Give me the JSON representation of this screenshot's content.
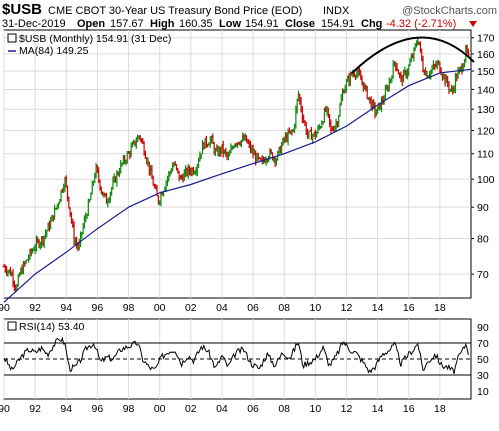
{
  "header": {
    "symbol": "$USB",
    "description": "CME CBOT 30-Year US Treasury Bond Price (EOD)",
    "exchange": "INDX",
    "watermark": "@StockCharts.com",
    "date": "31-Dec-2019",
    "ohlc": {
      "open_label": "Open",
      "open": "157.67",
      "high_label": "High",
      "high": "160.35",
      "low_label": "Low",
      "low": "154.91",
      "close_label": "Close",
      "close": "154.91",
      "chg_label": "Chg",
      "chg": "-4.32 (-2.71%)"
    }
  },
  "colors": {
    "up_bar": "#0d8a0d",
    "down_bar": "#cc0000",
    "ma_line": "#1a1a8c",
    "rsi_line": "#000000",
    "grid": "#dcdcdc",
    "arc": "#000000"
  },
  "chart_data": [
    {
      "type": "ohlc",
      "legend": [
        {
          "label": "$USB (Monthly) 154.91 (31 Dec)",
          "color": "#000000"
        },
        {
          "label": "MA(84) 149.25",
          "color": "#1a1a8c"
        }
      ],
      "x_ticks": [
        "90",
        "92",
        "94",
        "96",
        "98",
        "00",
        "02",
        "04",
        "06",
        "08",
        "10",
        "12",
        "14",
        "16",
        "18"
      ],
      "x_range": [
        1990.0,
        2020.0
      ],
      "y_ticks": [
        70,
        80,
        90,
        100,
        110,
        120,
        130,
        140,
        150,
        160,
        170
      ],
      "y_range": [
        64,
        175
      ],
      "scale": "log",
      "grid": true,
      "price": [
        [
          1990.0,
          72
        ],
        [
          1990.5,
          70
        ],
        [
          1990.8,
          66
        ],
        [
          1991.0,
          70
        ],
        [
          1991.5,
          74
        ],
        [
          1992.0,
          78
        ],
        [
          1992.5,
          80
        ],
        [
          1993.0,
          85
        ],
        [
          1993.5,
          92
        ],
        [
          1993.9,
          100
        ],
        [
          1994.2,
          90
        ],
        [
          1994.5,
          80
        ],
        [
          1994.8,
          77
        ],
        [
          1995.0,
          82
        ],
        [
          1995.5,
          92
        ],
        [
          1995.9,
          104
        ],
        [
          1996.3,
          95
        ],
        [
          1996.6,
          92
        ],
        [
          1997.0,
          98
        ],
        [
          1997.5,
          105
        ],
        [
          1998.0,
          110
        ],
        [
          1998.7,
          118
        ],
        [
          1999.0,
          112
        ],
        [
          1999.5,
          100
        ],
        [
          1999.9,
          92
        ],
        [
          2000.2,
          96
        ],
        [
          2000.6,
          102
        ],
        [
          2000.9,
          106
        ],
        [
          2001.3,
          100
        ],
        [
          2001.8,
          103
        ],
        [
          2002.3,
          104
        ],
        [
          2002.8,
          114
        ],
        [
          2003.3,
          116
        ],
        [
          2003.6,
          110
        ],
        [
          2004.0,
          112
        ],
        [
          2004.4,
          108
        ],
        [
          2004.8,
          115
        ],
        [
          2005.5,
          116
        ],
        [
          2006.0,
          110
        ],
        [
          2006.5,
          106
        ],
        [
          2007.0,
          110
        ],
        [
          2007.5,
          108
        ],
        [
          2008.0,
          116
        ],
        [
          2008.6,
          120
        ],
        [
          2008.9,
          138
        ],
        [
          2009.2,
          126
        ],
        [
          2009.5,
          118
        ],
        [
          2010.0,
          118
        ],
        [
          2010.3,
          122
        ],
        [
          2010.7,
          130
        ],
        [
          2011.0,
          120
        ],
        [
          2011.4,
          124
        ],
        [
          2011.8,
          140
        ],
        [
          2012.3,
          148
        ],
        [
          2012.6,
          150
        ],
        [
          2013.0,
          144
        ],
        [
          2013.5,
          134
        ],
        [
          2013.9,
          128
        ],
        [
          2014.3,
          134
        ],
        [
          2014.6,
          140
        ],
        [
          2014.9,
          148
        ],
        [
          2015.1,
          156
        ],
        [
          2015.5,
          145
        ],
        [
          2015.9,
          150
        ],
        [
          2016.3,
          160
        ],
        [
          2016.6,
          170
        ],
        [
          2016.9,
          152
        ],
        [
          2017.2,
          148
        ],
        [
          2017.6,
          152
        ],
        [
          2017.9,
          154
        ],
        [
          2018.3,
          146
        ],
        [
          2018.8,
          138
        ],
        [
          2019.0,
          146
        ],
        [
          2019.4,
          152
        ],
        [
          2019.7,
          162
        ],
        [
          2019.9,
          155
        ]
      ],
      "ma84": [
        [
          1990.0,
          63
        ],
        [
          1992.0,
          70
        ],
        [
          1994.0,
          76
        ],
        [
          1996.0,
          83
        ],
        [
          1998.0,
          90
        ],
        [
          2000.0,
          95
        ],
        [
          2002.0,
          98
        ],
        [
          2004.0,
          102
        ],
        [
          2006.0,
          106
        ],
        [
          2008.0,
          110
        ],
        [
          2010.0,
          115
        ],
        [
          2012.0,
          122
        ],
        [
          2014.0,
          132
        ],
        [
          2016.0,
          142
        ],
        [
          2018.0,
          149
        ],
        [
          2020.0,
          151
        ]
      ]
    },
    {
      "type": "line",
      "legend": [
        {
          "label": "RSI(14) 53.40",
          "color": "#000000"
        }
      ],
      "y_ticks": [
        10,
        30,
        50,
        70,
        90
      ],
      "y_range": [
        0,
        100
      ],
      "reference_lines": [
        30,
        50,
        70
      ],
      "rsi": [
        [
          1990.0,
          52
        ],
        [
          1990.5,
          36
        ],
        [
          1990.8,
          44
        ],
        [
          1991.2,
          55
        ],
        [
          1991.6,
          62
        ],
        [
          1992.0,
          58
        ],
        [
          1992.4,
          64
        ],
        [
          1992.8,
          56
        ],
        [
          1993.2,
          68
        ],
        [
          1993.6,
          76
        ],
        [
          1993.9,
          70
        ],
        [
          1994.2,
          38
        ],
        [
          1994.6,
          40
        ],
        [
          1994.9,
          48
        ],
        [
          1995.3,
          64
        ],
        [
          1995.8,
          70
        ],
        [
          1996.2,
          46
        ],
        [
          1996.6,
          52
        ],
        [
          1997.0,
          50
        ],
        [
          1997.5,
          62
        ],
        [
          1998.0,
          66
        ],
        [
          1998.6,
          70
        ],
        [
          1998.9,
          50
        ],
        [
          1999.3,
          40
        ],
        [
          1999.7,
          36
        ],
        [
          2000.1,
          52
        ],
        [
          2000.6,
          60
        ],
        [
          2001.0,
          62
        ],
        [
          2001.4,
          44
        ],
        [
          2001.8,
          55
        ],
        [
          2002.2,
          48
        ],
        [
          2002.7,
          66
        ],
        [
          2003.1,
          60
        ],
        [
          2003.6,
          38
        ],
        [
          2004.0,
          54
        ],
        [
          2004.4,
          40
        ],
        [
          2004.9,
          58
        ],
        [
          2005.4,
          62
        ],
        [
          2005.9,
          44
        ],
        [
          2006.4,
          38
        ],
        [
          2006.9,
          56
        ],
        [
          2007.4,
          42
        ],
        [
          2007.9,
          58
        ],
        [
          2008.4,
          52
        ],
        [
          2008.9,
          72
        ],
        [
          2009.2,
          42
        ],
        [
          2009.6,
          46
        ],
        [
          2010.0,
          50
        ],
        [
          2010.5,
          64
        ],
        [
          2010.9,
          42
        ],
        [
          2011.3,
          52
        ],
        [
          2011.8,
          72
        ],
        [
          2012.2,
          62
        ],
        [
          2012.6,
          58
        ],
        [
          2013.0,
          48
        ],
        [
          2013.5,
          34
        ],
        [
          2013.9,
          42
        ],
        [
          2014.3,
          56
        ],
        [
          2014.8,
          62
        ],
        [
          2015.1,
          68
        ],
        [
          2015.5,
          44
        ],
        [
          2015.9,
          54
        ],
        [
          2016.3,
          62
        ],
        [
          2016.6,
          70
        ],
        [
          2016.9,
          36
        ],
        [
          2017.3,
          48
        ],
        [
          2017.7,
          56
        ],
        [
          2018.1,
          42
        ],
        [
          2018.5,
          40
        ],
        [
          2018.9,
          34
        ],
        [
          2019.2,
          52
        ],
        [
          2019.5,
          62
        ],
        [
          2019.7,
          70
        ],
        [
          2019.9,
          53
        ]
      ]
    }
  ]
}
